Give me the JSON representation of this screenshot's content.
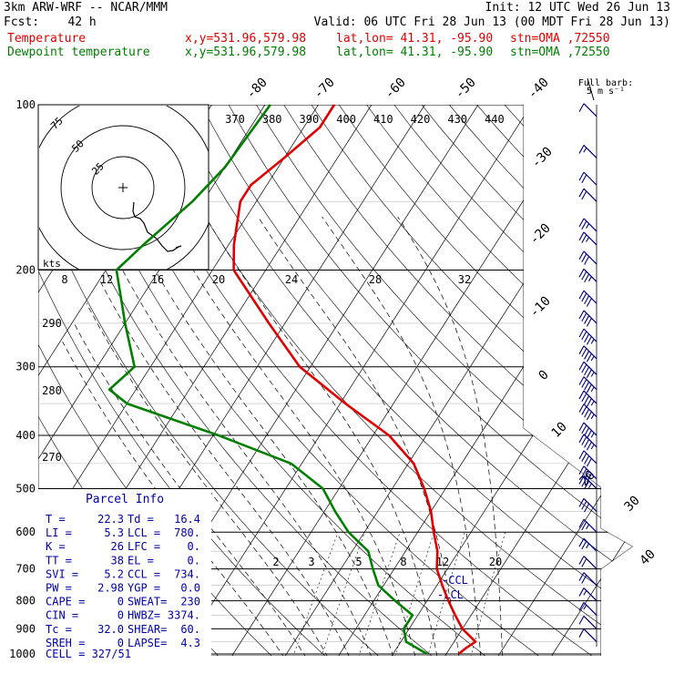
{
  "header": {
    "model": "3km ARW-WRF -- NCAR/MMM",
    "init": "Init: 12 UTC Wed 26 Jun 13",
    "fcst": "Fcst:    42 h",
    "valid": "Valid: 06 UTC Fri 28 Jun 13 (00 MDT Fri 28 Jun 13)"
  },
  "legend": [
    {
      "name": "Temperature",
      "xy": "x,y=531.96,579.98",
      "latlon": "lat,lon= 41.31, -95.90",
      "stn": "stn=OMA ,72550",
      "color": "#e00000"
    },
    {
      "name": "Dewpoint temperature",
      "xy": "x,y=531.96,579.98",
      "latlon": "lat,lon= 41.31, -95.90",
      "stn": "stn=OMA ,72550",
      "color": "#007f00"
    }
  ],
  "barb_label": [
    "Full barb:",
    "5 m s⁻¹"
  ],
  "hodograph": {
    "unit": "kts",
    "rings": [
      "25",
      "50",
      "75"
    ]
  },
  "parcel_info": {
    "title": "Parcel Info",
    "rows": [
      [
        "T  =",
        "22.3",
        "Td =",
        "16.4"
      ],
      [
        "LI =",
        "5.3",
        "LCL =",
        "780."
      ],
      [
        "K  =",
        "26",
        "LFC =",
        "0."
      ],
      [
        "TT =",
        "38",
        "EL  =",
        "0."
      ],
      [
        "SVI =",
        "5.2",
        "CCL =",
        "734."
      ],
      [
        "PW =",
        "2.98",
        "YGP =",
        "0.0"
      ],
      [
        "CAPE =",
        "0",
        "SWEAT=",
        "230"
      ],
      [
        "CIN =",
        "0",
        "HWBZ=",
        "3374."
      ],
      [
        "Tc =",
        "32.0",
        "SHEAR=",
        "60."
      ],
      [
        "SREH =",
        "0",
        "LAPSE=",
        "4.3"
      ]
    ],
    "cell": "CELL = 327/51"
  },
  "level_labels": {
    "lcl": "LCL",
    "ccl": "CCL"
  },
  "chart_data": {
    "type": "line",
    "title": "",
    "x_axis": "temperature (°C), skewed",
    "y_axis": "pressure (hPa), log scale",
    "ylim": [
      1000,
      100
    ],
    "pressure_ticks": [
      "100",
      "200",
      "300",
      "400",
      "500",
      "600",
      "700",
      "800",
      "900",
      "1000"
    ],
    "isotherm_labels": [
      "-80",
      "-70",
      "-60",
      "-50",
      "-40",
      "-30",
      "-20",
      "-10",
      "0",
      "10",
      "20",
      "30",
      "40"
    ],
    "theta_labels": [
      "370",
      "380",
      "390",
      "400",
      "410",
      "420",
      "430",
      "440"
    ],
    "theta_e_labels": [
      "290",
      "280",
      "270"
    ],
    "mixing_ratio_labels": [
      "2",
      "3",
      "5",
      "8",
      "12",
      "20"
    ],
    "wetbulb_labels": [
      "8",
      "12",
      "16",
      "20",
      "24",
      "28",
      "32"
    ],
    "series": [
      {
        "name": "Temperature",
        "color": "#e00000",
        "points": [
          [
            100,
            -67
          ],
          [
            110,
            -67
          ],
          [
            125,
            -70
          ],
          [
            140,
            -73
          ],
          [
            150,
            -73
          ],
          [
            180,
            -69
          ],
          [
            200,
            -66
          ],
          [
            250,
            -53
          ],
          [
            300,
            -42
          ],
          [
            350,
            -29
          ],
          [
            400,
            -17
          ],
          [
            450,
            -9
          ],
          [
            500,
            -4
          ],
          [
            550,
            0
          ],
          [
            600,
            3
          ],
          [
            650,
            6
          ],
          [
            700,
            8
          ],
          [
            750,
            11
          ],
          [
            800,
            14
          ],
          [
            850,
            17
          ],
          [
            900,
            20
          ],
          [
            950,
            24
          ],
          [
            975,
            23
          ],
          [
            1000,
            22.3
          ]
        ]
      },
      {
        "name": "Dewpoint temperature",
        "color": "#007f00",
        "points": [
          [
            100,
            -79
          ],
          [
            130,
            -80
          ],
          [
            150,
            -82
          ],
          [
            180,
            -86
          ],
          [
            200,
            -88
          ],
          [
            250,
            -80
          ],
          [
            300,
            -73
          ],
          [
            330,
            -75
          ],
          [
            350,
            -70
          ],
          [
            400,
            -49
          ],
          [
            450,
            -32
          ],
          [
            500,
            -23
          ],
          [
            550,
            -18
          ],
          [
            600,
            -13
          ],
          [
            650,
            -7
          ],
          [
            700,
            -4
          ],
          [
            750,
            -1
          ],
          [
            800,
            4
          ],
          [
            850,
            9
          ],
          [
            900,
            9
          ],
          [
            950,
            11
          ],
          [
            1000,
            16.4
          ]
        ]
      }
    ],
    "wind_barbs": [
      [
        105,
        10
      ],
      [
        125,
        15
      ],
      [
        140,
        20
      ],
      [
        150,
        20
      ],
      [
        170,
        25
      ],
      [
        180,
        25
      ],
      [
        195,
        30
      ],
      [
        210,
        35
      ],
      [
        230,
        40
      ],
      [
        250,
        40
      ],
      [
        270,
        45
      ],
      [
        290,
        45
      ],
      [
        310,
        45
      ],
      [
        330,
        45
      ],
      [
        350,
        45
      ],
      [
        370,
        45
      ],
      [
        400,
        45
      ],
      [
        420,
        45
      ],
      [
        450,
        40
      ],
      [
        480,
        40
      ],
      [
        500,
        35
      ],
      [
        550,
        30
      ],
      [
        600,
        25
      ],
      [
        650,
        25
      ],
      [
        700,
        20
      ],
      [
        750,
        20
      ],
      [
        800,
        15
      ],
      [
        850,
        15
      ],
      [
        900,
        10
      ],
      [
        950,
        10
      ]
    ]
  }
}
